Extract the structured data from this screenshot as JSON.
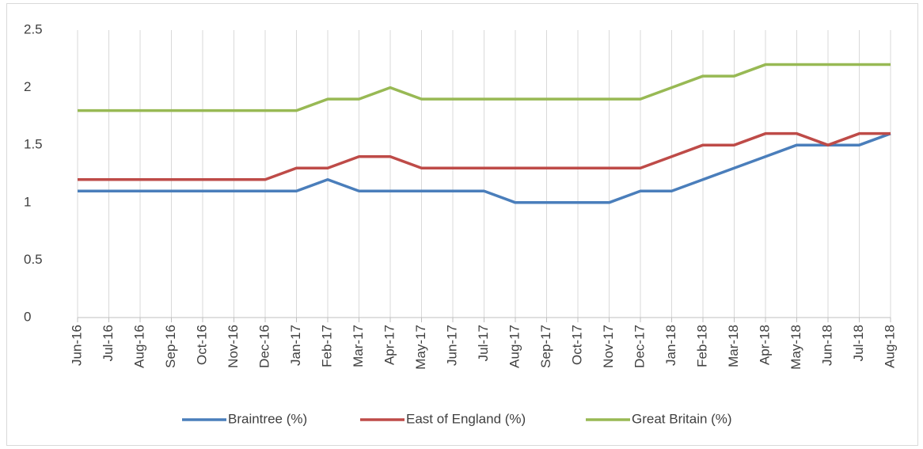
{
  "chart_data": {
    "type": "line",
    "categories": [
      "Jun-16",
      "Jul-16",
      "Aug-16",
      "Sep-16",
      "Oct-16",
      "Nov-16",
      "Dec-16",
      "Jan-17",
      "Feb-17",
      "Mar-17",
      "Apr-17",
      "May-17",
      "Jun-17",
      "Jul-17",
      "Aug-17",
      "Sep-17",
      "Oct-17",
      "Nov-17",
      "Dec-17",
      "Jan-18",
      "Feb-18",
      "Mar-18",
      "Apr-18",
      "May-18",
      "Jun-18",
      "Jul-18",
      "Aug-18"
    ],
    "series": [
      {
        "name": "Braintree (%)",
        "color": "#4a7ebb",
        "values": [
          1.1,
          1.1,
          1.1,
          1.1,
          1.1,
          1.1,
          1.1,
          1.1,
          1.2,
          1.1,
          1.1,
          1.1,
          1.1,
          1.1,
          1.0,
          1.0,
          1.0,
          1.0,
          1.1,
          1.1,
          1.2,
          1.3,
          1.4,
          1.5,
          1.5,
          1.5,
          1.6
        ]
      },
      {
        "name": "East of England (%)",
        "color": "#be4b48",
        "values": [
          1.2,
          1.2,
          1.2,
          1.2,
          1.2,
          1.2,
          1.2,
          1.3,
          1.3,
          1.4,
          1.4,
          1.3,
          1.3,
          1.3,
          1.3,
          1.3,
          1.3,
          1.3,
          1.3,
          1.4,
          1.5,
          1.5,
          1.6,
          1.6,
          1.5,
          1.6,
          1.6
        ]
      },
      {
        "name": "Great Britain (%)",
        "color": "#98b954",
        "values": [
          1.8,
          1.8,
          1.8,
          1.8,
          1.8,
          1.8,
          1.8,
          1.8,
          1.9,
          1.9,
          2.0,
          1.9,
          1.9,
          1.9,
          1.9,
          1.9,
          1.9,
          1.9,
          1.9,
          2.0,
          2.1,
          2.1,
          2.2,
          2.2,
          2.2,
          2.2,
          2.2
        ]
      }
    ],
    "ylim": [
      0,
      2.5
    ],
    "yticks": [
      0,
      0.5,
      1,
      1.5,
      2,
      2.5
    ],
    "x_grid": true,
    "legend": "bottom"
  }
}
